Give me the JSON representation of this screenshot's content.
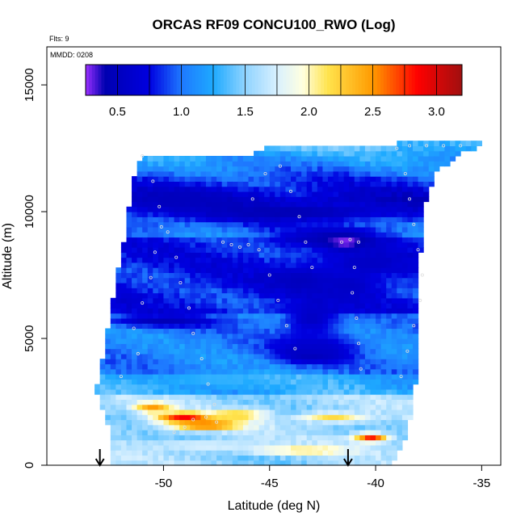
{
  "chart_data": {
    "type": "heatmap",
    "title": "ORCAS RF09 CONCU100_RWO (Log)",
    "annotations": {
      "flights": "Flts: 9",
      "date": "MMDD: 0208"
    },
    "xlabel": "Latitude (deg N)",
    "ylabel": "Altitude (m)",
    "xlim": [
      -55.5,
      -34.1
    ],
    "ylim": [
      0,
      16500
    ],
    "xticks": [
      {
        "value": -50,
        "label": "-50"
      },
      {
        "value": -45,
        "label": "-45"
      },
      {
        "value": -40,
        "label": "-40"
      },
      {
        "value": -35,
        "label": "-35"
      }
    ],
    "yticks": [
      {
        "value": 0,
        "label": "0"
      },
      {
        "value": 5000,
        "label": "5000"
      },
      {
        "value": 10000,
        "label": "10000"
      },
      {
        "value": 15000,
        "label": "15000"
      }
    ],
    "colorbar": {
      "range": [
        0.25,
        3.2
      ],
      "ticks": [
        {
          "value": 0.5,
          "label": "0.5"
        },
        {
          "value": 1.0,
          "label": "1.0"
        },
        {
          "value": 1.5,
          "label": "1.5"
        },
        {
          "value": 2.0,
          "label": "2.0"
        },
        {
          "value": 2.5,
          "label": "2.5"
        },
        {
          "value": 3.0,
          "label": "3.0"
        }
      ],
      "stops": [
        {
          "value": 0.25,
          "color": "#9b30ff"
        },
        {
          "value": 0.4,
          "color": "#0000b0"
        },
        {
          "value": 0.75,
          "color": "#0000e0"
        },
        {
          "value": 1.0,
          "color": "#1e78ff"
        },
        {
          "value": 1.25,
          "color": "#1eaaff"
        },
        {
          "value": 1.5,
          "color": "#8fd3ff"
        },
        {
          "value": 1.75,
          "color": "#d8f0ff"
        },
        {
          "value": 1.95,
          "color": "#ffffe0"
        },
        {
          "value": 2.15,
          "color": "#ffe34d"
        },
        {
          "value": 2.5,
          "color": "#ff9a00"
        },
        {
          "value": 2.85,
          "color": "#ff0000"
        },
        {
          "value": 3.2,
          "color": "#a01010"
        }
      ]
    },
    "arrows": [
      {
        "lat": -53.0
      },
      {
        "lat": -41.3
      }
    ],
    "coverage": {
      "north_edge": [
        [
          0,
          -39.3
        ],
        [
          1200,
          -38.5
        ],
        [
          4000,
          -38.0
        ],
        [
          8000,
          -37.9
        ],
        [
          10000,
          -37.8
        ],
        [
          11500,
          -37.2
        ],
        [
          12300,
          -36.0
        ],
        [
          12600,
          -35.0
        ]
      ],
      "south_edge": [
        [
          0,
          -52.6
        ],
        [
          600,
          -52.6
        ],
        [
          1200,
          -52.4
        ],
        [
          2000,
          -52.8
        ],
        [
          3000,
          -53.2
        ],
        [
          3500,
          -53.0
        ],
        [
          5000,
          -52.7
        ],
        [
          7000,
          -52.3
        ],
        [
          9000,
          -51.8
        ],
        [
          11000,
          -51.5
        ],
        [
          12200,
          -51.0
        ]
      ],
      "top_edge": [
        [
          -51.0,
          12200
        ],
        [
          -48.0,
          12200
        ],
        [
          -46.0,
          12200
        ],
        [
          -45.3,
          12500
        ],
        [
          -41.0,
          12500
        ],
        [
          -39.0,
          12700
        ],
        [
          -35.0,
          12700
        ]
      ]
    },
    "features": [
      {
        "lat": -44.0,
        "alt": 10000,
        "val": 0.42,
        "slat": 4.5,
        "salt": 300
      },
      {
        "lat": -49.0,
        "alt": 10500,
        "val": 0.5,
        "slat": 2.5,
        "salt": 450
      },
      {
        "lat": -42.0,
        "alt": 9000,
        "val": 0.45,
        "slat": 2.5,
        "salt": 350
      },
      {
        "lat": -41.4,
        "alt": 8800,
        "val": 0.25,
        "slat": 0.9,
        "salt": 300
      },
      {
        "lat": -40.3,
        "alt": 8000,
        "val": 0.55,
        "slat": 2.0,
        "salt": 500
      },
      {
        "lat": -43.5,
        "alt": 7300,
        "val": 0.5,
        "slat": 1.6,
        "salt": 550
      },
      {
        "lat": -41.2,
        "alt": 7100,
        "val": 0.55,
        "slat": 1.4,
        "salt": 600
      },
      {
        "lat": -50.0,
        "alt": 5700,
        "val": 0.45,
        "slat": 2.5,
        "salt": 230
      },
      {
        "lat": -43.0,
        "alt": 5800,
        "val": 0.55,
        "slat": 1.3,
        "salt": 700
      },
      {
        "lat": -43.0,
        "alt": 4400,
        "val": 0.32,
        "slat": 1.4,
        "salt": 350
      },
      {
        "lat": -42.8,
        "alt": 4700,
        "val": 0.6,
        "slat": 2.0,
        "salt": 500
      },
      {
        "lat": -47.5,
        "alt": 3400,
        "val": 1.3,
        "slat": 3.0,
        "salt": 300
      },
      {
        "lat": -49.0,
        "alt": 1900,
        "val": 2.9,
        "slat": 1.4,
        "salt": 200
      },
      {
        "lat": -48.0,
        "alt": 1600,
        "val": 2.7,
        "slat": 1.8,
        "salt": 200
      },
      {
        "lat": -50.5,
        "alt": 2300,
        "val": 2.5,
        "slat": 0.9,
        "salt": 200
      },
      {
        "lat": -46.5,
        "alt": 2000,
        "val": 2.3,
        "slat": 1.3,
        "salt": 200
      },
      {
        "lat": -42.0,
        "alt": 1900,
        "val": 2.2,
        "slat": 1.6,
        "salt": 200
      },
      {
        "lat": -40.2,
        "alt": 1100,
        "val": 2.8,
        "slat": 0.8,
        "salt": 180
      },
      {
        "lat": -43.5,
        "alt": 600,
        "val": 2.25,
        "slat": 2.5,
        "salt": 150
      },
      {
        "lat": -48.0,
        "alt": 800,
        "val": 1.8,
        "slat": 2.5,
        "salt": 200
      }
    ],
    "flight_points": [
      [
        -51.0,
        12200
      ],
      [
        -50.5,
        11200
      ],
      [
        -50.2,
        10200
      ],
      [
        -49.8,
        9200
      ],
      [
        -49.4,
        8200
      ],
      [
        -49.2,
        7200
      ],
      [
        -48.8,
        6200
      ],
      [
        -48.6,
        5200
      ],
      [
        -48.2,
        4200
      ],
      [
        -47.9,
        3200
      ],
      [
        -47.6,
        2400
      ],
      [
        -47.2,
        8800
      ],
      [
        -46.8,
        8700
      ],
      [
        -46.4,
        8600
      ],
      [
        -46.0,
        8700
      ],
      [
        -45.5,
        8500
      ],
      [
        -45.0,
        7500
      ],
      [
        -44.6,
        6500
      ],
      [
        -44.2,
        5500
      ],
      [
        -43.8,
        4600
      ],
      [
        -41.6,
        8800
      ],
      [
        -41.2,
        8900
      ],
      [
        -40.8,
        8800
      ],
      [
        -41.0,
        7800
      ],
      [
        -41.1,
        6800
      ],
      [
        -40.9,
        5800
      ],
      [
        -40.8,
        4800
      ],
      [
        -40.7,
        3800
      ],
      [
        -39.0,
        12500
      ],
      [
        -38.6,
        11500
      ],
      [
        -38.4,
        10500
      ],
      [
        -38.2,
        9500
      ],
      [
        -38.0,
        8500
      ],
      [
        -37.8,
        7500
      ],
      [
        -37.9,
        6500
      ],
      [
        -38.2,
        5500
      ],
      [
        -38.5,
        4500
      ],
      [
        -38.8,
        3500
      ],
      [
        -38.4,
        12600
      ],
      [
        -37.6,
        12600
      ],
      [
        -36.8,
        12600
      ],
      [
        -36.0,
        12600
      ],
      [
        -52.0,
        3500
      ],
      [
        -51.2,
        4400
      ],
      [
        -51.4,
        5400
      ],
      [
        -51.0,
        6400
      ],
      [
        -50.6,
        7400
      ],
      [
        -50.4,
        8400
      ],
      [
        -50.1,
        9400
      ],
      [
        -45.8,
        10500
      ],
      [
        -45.2,
        11500
      ],
      [
        -44.5,
        11800
      ],
      [
        -44.0,
        10800
      ],
      [
        -43.6,
        9800
      ],
      [
        -43.3,
        8800
      ],
      [
        -43.0,
        7800
      ],
      [
        -49.5,
        1300
      ],
      [
        -49.0,
        1500
      ],
      [
        -48.6,
        1800
      ],
      [
        -48.0,
        1900
      ],
      [
        -47.5,
        1700
      ]
    ]
  }
}
